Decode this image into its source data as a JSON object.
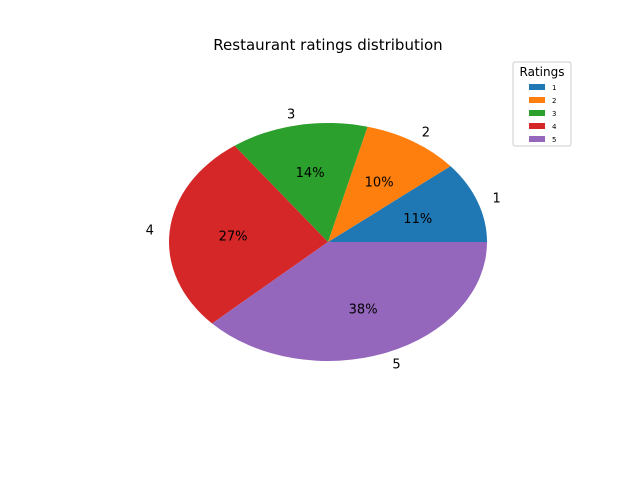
{
  "chart_data": {
    "type": "pie",
    "title": "Restaurant ratings distribution",
    "categories": [
      "1",
      "2",
      "3",
      "4",
      "5"
    ],
    "values": [
      11,
      10,
      14,
      27,
      38
    ],
    "percent_labels": [
      "11%",
      "10%",
      "14%",
      "27%",
      "38%"
    ],
    "colors": [
      "#1f77b4",
      "#ff7f0e",
      "#2ca02c",
      "#d62728",
      "#9467bd"
    ],
    "legend": {
      "title": "Ratings",
      "placement": "top-right",
      "entries": [
        "1",
        "2",
        "3",
        "4",
        "5"
      ]
    }
  }
}
